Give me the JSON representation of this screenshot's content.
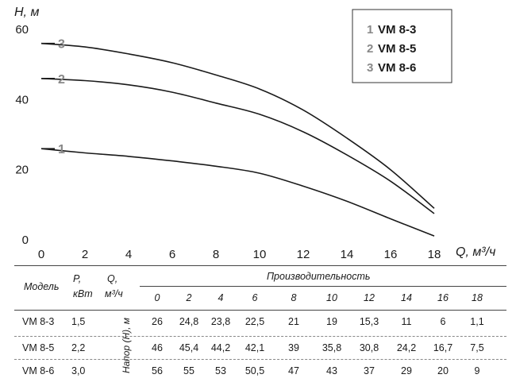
{
  "chart_data": {
    "type": "line",
    "xlabel": "Q, м³/ч",
    "ylabel": "H, м",
    "xlim": [
      0,
      18
    ],
    "ylim": [
      0,
      60
    ],
    "xticks": [
      "0",
      "2",
      "4",
      "6",
      "8",
      "10",
      "12",
      "14",
      "16",
      "18"
    ],
    "yticks": [
      "0",
      "20",
      "40",
      "60"
    ],
    "grid": false,
    "legend_position": "top-right",
    "legend": [
      {
        "num": "1",
        "name": "VM 8-3"
      },
      {
        "num": "2",
        "name": "VM 8-5"
      },
      {
        "num": "3",
        "name": "VM 8-6"
      }
    ],
    "x": [
      0,
      2,
      4,
      6,
      8,
      10,
      12,
      14,
      16,
      18
    ],
    "series": [
      {
        "name": "VM 8-3",
        "label": "1",
        "values": [
          26,
          24.8,
          23.8,
          22.5,
          21,
          19,
          15.3,
          11,
          6,
          1.1
        ]
      },
      {
        "name": "VM 8-5",
        "label": "2",
        "values": [
          46,
          45.4,
          44.2,
          42.1,
          39,
          35.8,
          30.8,
          24.2,
          16.7,
          7.5
        ]
      },
      {
        "name": "VM 8-6",
        "label": "3",
        "values": [
          56,
          55,
          53,
          50.5,
          47,
          43,
          37,
          29,
          20,
          9
        ]
      }
    ]
  },
  "table": {
    "header_model": "Модель",
    "header_power": "P,",
    "header_power_unit": "кВт",
    "header_flow": "Q,",
    "header_flow_unit": "м³/ч",
    "header_productivity": "Производительность",
    "head_label": "Напор (H), м",
    "q_values": [
      "0",
      "2",
      "4",
      "6",
      "8",
      "10",
      "12",
      "14",
      "16",
      "18"
    ],
    "rows": [
      {
        "model": "VM 8-3",
        "power": "1,5",
        "values": [
          "26",
          "24,8",
          "23,8",
          "22,5",
          "21",
          "19",
          "15,3",
          "11",
          "6",
          "1,1"
        ]
      },
      {
        "model": "VM 8-5",
        "power": "2,2",
        "values": [
          "46",
          "45,4",
          "44,2",
          "42,1",
          "39",
          "35,8",
          "30,8",
          "24,2",
          "16,7",
          "7,5"
        ]
      },
      {
        "model": "VM 8-6",
        "power": "3,0",
        "values": [
          "56",
          "55",
          "53",
          "50,5",
          "47",
          "43",
          "37",
          "29",
          "20",
          "9"
        ]
      }
    ]
  }
}
